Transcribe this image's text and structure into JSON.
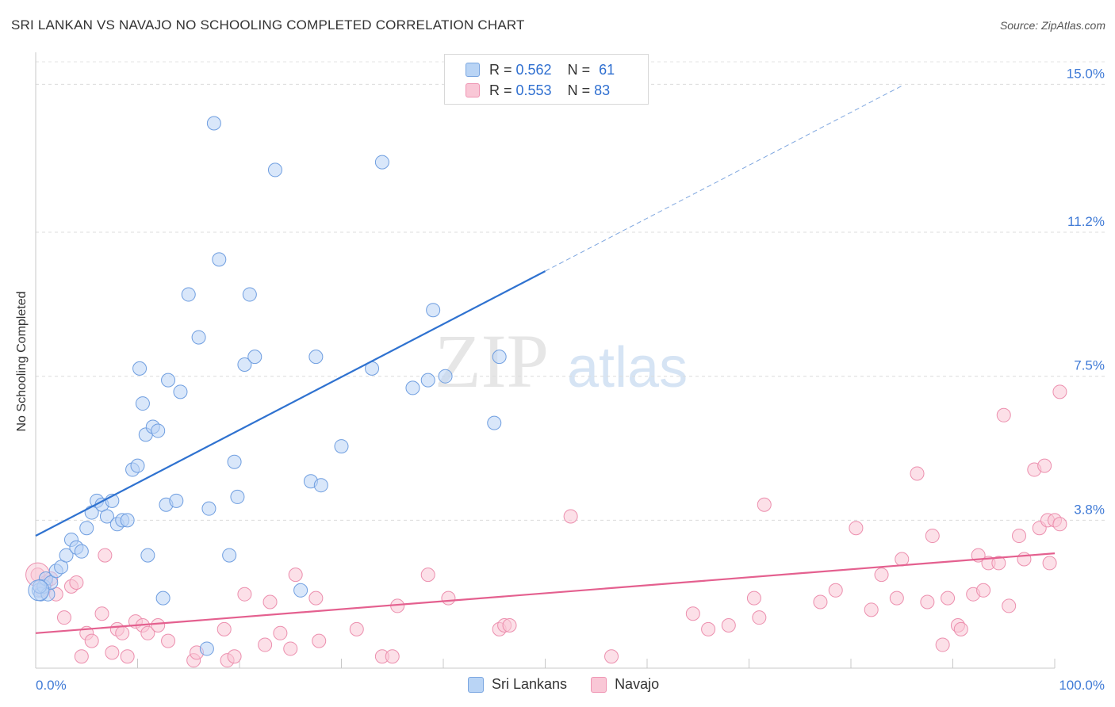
{
  "header": {
    "title": "SRI LANKAN VS NAVAJO NO SCHOOLING COMPLETED CORRELATION CHART",
    "source": "Source: ZipAtlas.com"
  },
  "legend": {
    "rows": [
      {
        "r_label": "R = ",
        "r_value": "0.562",
        "n_label": "N = ",
        "n_value": "61"
      },
      {
        "r_label": "R = ",
        "r_value": "0.553",
        "n_label": "N = ",
        "n_value": "83"
      }
    ]
  },
  "watermark": {
    "zip": "ZIP",
    "atlas": "atlas"
  },
  "colors": {
    "blue": "#2f72d0",
    "blue_fill": "#b9d4f5",
    "pink": "#e4608f",
    "pink_fill": "#f9c7d6"
  },
  "chart_data": {
    "type": "scatter",
    "title": "SRI LANKAN VS NAVAJO NO SCHOOLING COMPLETED CORRELATION CHART",
    "xlabel": "",
    "ylabel": "No Schooling Completed",
    "xlim": [
      0,
      100
    ],
    "ylim": [
      0,
      15.7
    ],
    "x_tick_labels": [
      "0.0%",
      "100.0%"
    ],
    "y_ticks": [
      3.8,
      7.5,
      11.2,
      15.0
    ],
    "y_tick_labels": [
      "3.8%",
      "7.5%",
      "11.2%",
      "15.0%"
    ],
    "grid": true,
    "series": [
      {
        "name": "Sri Lankans",
        "r": 0.562,
        "n": 61,
        "trend": {
          "x0": 0,
          "y0": 3.4,
          "x1": 50,
          "y1": 10.2,
          "dashed_to_x": 85
        },
        "points": [
          [
            0.3,
            2.0
          ],
          [
            0.5,
            1.9
          ],
          [
            0.8,
            2.1
          ],
          [
            1.0,
            2.3
          ],
          [
            1.2,
            1.9
          ],
          [
            1.5,
            2.2
          ],
          [
            2.0,
            2.5
          ],
          [
            2.5,
            2.6
          ],
          [
            3.0,
            2.9
          ],
          [
            3.5,
            3.3
          ],
          [
            4.0,
            3.1
          ],
          [
            4.5,
            3.0
          ],
          [
            5.0,
            3.6
          ],
          [
            5.5,
            4.0
          ],
          [
            6.0,
            4.3
          ],
          [
            6.5,
            4.2
          ],
          [
            7.0,
            3.9
          ],
          [
            7.5,
            4.3
          ],
          [
            8.0,
            3.7
          ],
          [
            8.5,
            3.8
          ],
          [
            9.0,
            3.8
          ],
          [
            9.5,
            5.1
          ],
          [
            10.0,
            5.2
          ],
          [
            10.5,
            6.8
          ],
          [
            10.2,
            7.7
          ],
          [
            10.8,
            6.0
          ],
          [
            11.0,
            2.9
          ],
          [
            11.5,
            6.2
          ],
          [
            12.0,
            6.1
          ],
          [
            12.5,
            1.8
          ],
          [
            12.8,
            4.2
          ],
          [
            13.0,
            7.4
          ],
          [
            13.8,
            4.3
          ],
          [
            14.2,
            7.1
          ],
          [
            15.0,
            9.6
          ],
          [
            16.0,
            8.5
          ],
          [
            16.8,
            0.5
          ],
          [
            17.0,
            4.1
          ],
          [
            17.5,
            14.0
          ],
          [
            18.0,
            10.5
          ],
          [
            19.0,
            2.9
          ],
          [
            19.5,
            5.3
          ],
          [
            19.8,
            4.4
          ],
          [
            20.5,
            7.8
          ],
          [
            21.0,
            9.6
          ],
          [
            21.5,
            8.0
          ],
          [
            23.5,
            12.8
          ],
          [
            26.0,
            2.0
          ],
          [
            27.0,
            4.8
          ],
          [
            27.5,
            8.0
          ],
          [
            28.0,
            4.7
          ],
          [
            30.0,
            5.7
          ],
          [
            33.0,
            7.7
          ],
          [
            34.0,
            13.0
          ],
          [
            37.0,
            7.2
          ],
          [
            38.5,
            7.4
          ],
          [
            39.0,
            9.2
          ],
          [
            40.2,
            7.5
          ],
          [
            45.0,
            6.3
          ],
          [
            45.5,
            8.0
          ],
          [
            0.4,
            2.1
          ]
        ]
      },
      {
        "name": "Navajo",
        "r": 0.553,
        "n": 83,
        "trend": {
          "x0": 0,
          "y0": 0.9,
          "x1": 100,
          "y1": 2.95
        },
        "points": [
          [
            0.2,
            2.4
          ],
          [
            0.6,
            2.0
          ],
          [
            1.0,
            2.2
          ],
          [
            1.5,
            2.3
          ],
          [
            2.0,
            1.9
          ],
          [
            2.8,
            1.3
          ],
          [
            3.5,
            2.1
          ],
          [
            4.0,
            2.2
          ],
          [
            4.5,
            0.3
          ],
          [
            5.0,
            0.9
          ],
          [
            5.5,
            0.7
          ],
          [
            6.5,
            1.4
          ],
          [
            6.8,
            2.9
          ],
          [
            7.5,
            0.4
          ],
          [
            8.0,
            1.0
          ],
          [
            8.5,
            0.9
          ],
          [
            9.0,
            0.3
          ],
          [
            9.8,
            1.2
          ],
          [
            10.5,
            1.1
          ],
          [
            11.0,
            0.9
          ],
          [
            12.0,
            1.1
          ],
          [
            13.0,
            0.7
          ],
          [
            15.5,
            0.2
          ],
          [
            15.8,
            0.4
          ],
          [
            18.5,
            1.0
          ],
          [
            18.8,
            0.2
          ],
          [
            19.5,
            0.3
          ],
          [
            20.5,
            1.9
          ],
          [
            22.5,
            0.6
          ],
          [
            23.0,
            1.7
          ],
          [
            24.0,
            0.9
          ],
          [
            25.0,
            0.5
          ],
          [
            25.5,
            2.4
          ],
          [
            27.5,
            1.8
          ],
          [
            27.8,
            0.7
          ],
          [
            31.5,
            1.0
          ],
          [
            34.0,
            0.3
          ],
          [
            35.0,
            0.3
          ],
          [
            35.5,
            1.6
          ],
          [
            38.5,
            2.4
          ],
          [
            40.5,
            1.8
          ],
          [
            45.5,
            1.0
          ],
          [
            46.0,
            1.1
          ],
          [
            46.5,
            1.1
          ],
          [
            52.5,
            3.9
          ],
          [
            56.5,
            0.3
          ],
          [
            64.5,
            1.4
          ],
          [
            66.0,
            1.0
          ],
          [
            68.0,
            1.1
          ],
          [
            70.5,
            1.8
          ],
          [
            71.0,
            1.3
          ],
          [
            71.5,
            4.2
          ],
          [
            77.0,
            1.7
          ],
          [
            78.5,
            2.0
          ],
          [
            80.5,
            3.6
          ],
          [
            82.0,
            1.5
          ],
          [
            83.0,
            2.4
          ],
          [
            84.5,
            1.8
          ],
          [
            85.0,
            2.8
          ],
          [
            86.5,
            5.0
          ],
          [
            87.5,
            1.7
          ],
          [
            88.0,
            3.4
          ],
          [
            89.0,
            0.6
          ],
          [
            89.5,
            1.8
          ],
          [
            90.5,
            1.1
          ],
          [
            90.8,
            1.0
          ],
          [
            92.0,
            1.9
          ],
          [
            92.5,
            2.9
          ],
          [
            93.0,
            2.0
          ],
          [
            93.5,
            2.7
          ],
          [
            94.5,
            2.7
          ],
          [
            95.0,
            6.5
          ],
          [
            95.5,
            1.6
          ],
          [
            96.5,
            3.4
          ],
          [
            97.0,
            2.8
          ],
          [
            98.0,
            5.1
          ],
          [
            98.5,
            3.6
          ],
          [
            99.0,
            5.2
          ],
          [
            99.3,
            3.8
          ],
          [
            99.5,
            2.7
          ],
          [
            100.0,
            3.8
          ],
          [
            100.5,
            3.7
          ],
          [
            100.5,
            7.1
          ]
        ]
      }
    ]
  },
  "bottom_legend": {
    "items": [
      "Sri Lankans",
      "Navajo"
    ]
  }
}
